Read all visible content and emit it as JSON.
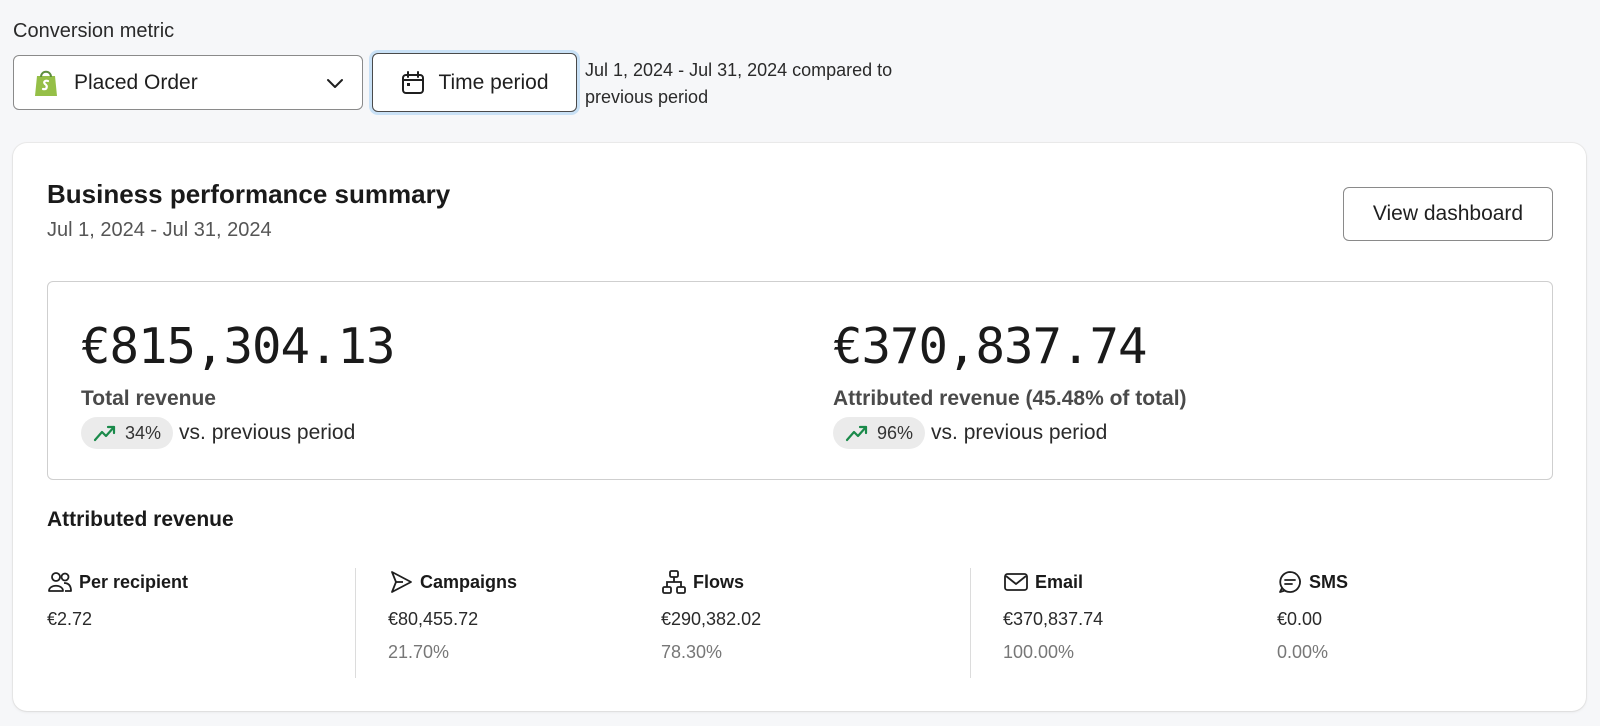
{
  "conversion_metric": {
    "label": "Conversion metric",
    "selected": "Placed Order",
    "icon": "shopify-bag-icon",
    "accent": "#95bf47"
  },
  "time_period": {
    "button_label": "Time period",
    "description": "Jul 1, 2024 - Jul 31, 2024 compared to previous period"
  },
  "summary": {
    "title": "Business performance summary",
    "date_range": "Jul 1, 2024 - Jul 31, 2024",
    "dashboard_button": "View dashboard",
    "total": {
      "value": "€815,304.13",
      "label": "Total revenue",
      "change": "34%",
      "vs": "vs. previous period",
      "trend": "up"
    },
    "attributed": {
      "value": "€370,837.74",
      "label": "Attributed revenue (45.48% of total)",
      "change": "96%",
      "vs": "vs. previous period",
      "trend": "up"
    },
    "trend_color": "#1a8a4a"
  },
  "attributed_revenue": {
    "title": "Attributed revenue",
    "columns": [
      {
        "icon": "users-icon",
        "label": "Per recipient",
        "value": "€2.72",
        "percent": ""
      },
      {
        "icon": "send-icon",
        "label": "Campaigns",
        "value": "€80,455.72",
        "percent": "21.70%"
      },
      {
        "icon": "flows-icon",
        "label": "Flows",
        "value": "€290,382.02",
        "percent": "78.30%"
      },
      {
        "icon": "mail-icon",
        "label": "Email",
        "value": "€370,837.74",
        "percent": "100.00%"
      },
      {
        "icon": "sms-icon",
        "label": "SMS",
        "value": "€0.00",
        "percent": "0.00%"
      }
    ]
  }
}
